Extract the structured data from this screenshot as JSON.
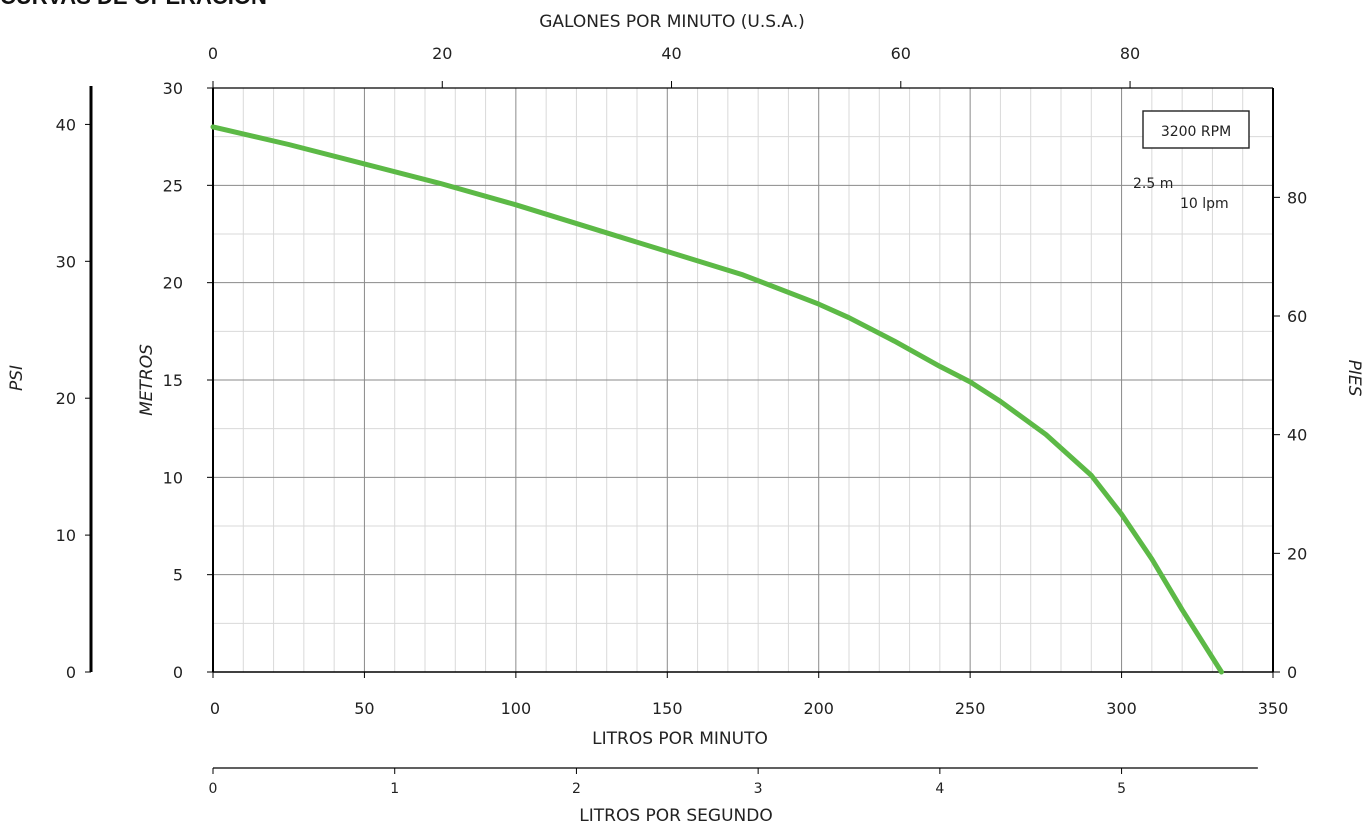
{
  "page_title": "CURVAS DE OPERACIÓN",
  "colors": {
    "curve": "#5cb946",
    "axis": "#000000",
    "grid_major": "#8a8a8a",
    "grid_minor": "#d9d9d9",
    "plot_bg": "#ffffff"
  },
  "chart_data": {
    "type": "line",
    "title": "",
    "speed_label": "3200 RPM",
    "grid_note_y": "2.5 m",
    "grid_note_x": "10 lpm",
    "xlabel": "LITROS POR MINUTO",
    "ylabel": "METROS",
    "x_ticks": [
      "0",
      "50",
      "100",
      "150",
      "200",
      "250",
      "300",
      "350"
    ],
    "y_ticks": [
      "0",
      "5",
      "10",
      "15",
      "20",
      "25",
      "30"
    ],
    "xlim": [
      0,
      350
    ],
    "ylim": [
      0,
      30
    ],
    "grid": true,
    "secondary_axes": {
      "top": {
        "label": "GALONES POR MINUTO (U.S.A.)",
        "ticks": [
          "0",
          "20",
          "40",
          "60",
          "80"
        ]
      },
      "bottom": {
        "label": "LITROS POR SEGUNDO",
        "ticks": [
          "0",
          "1",
          "2",
          "3",
          "4",
          "5"
        ]
      },
      "left": {
        "label": "PSI",
        "ticks": [
          "0",
          "10",
          "20",
          "30",
          "40"
        ]
      },
      "right": {
        "label": "PIES",
        "ticks": [
          "0",
          "20",
          "40",
          "60",
          "80"
        ]
      }
    },
    "series": [
      {
        "x": [
          0,
          25,
          50,
          75,
          100,
          125,
          150,
          175,
          200,
          210,
          225,
          240,
          250,
          260,
          275,
          290,
          300,
          310,
          320,
          333
        ],
        "y": [
          28,
          27.1,
          26.1,
          25.1,
          24,
          22.8,
          21.6,
          20.4,
          18.9,
          18.2,
          17,
          15.7,
          14.9,
          13.9,
          12.2,
          10.1,
          8.1,
          5.8,
          3.2,
          0
        ]
      }
    ]
  }
}
